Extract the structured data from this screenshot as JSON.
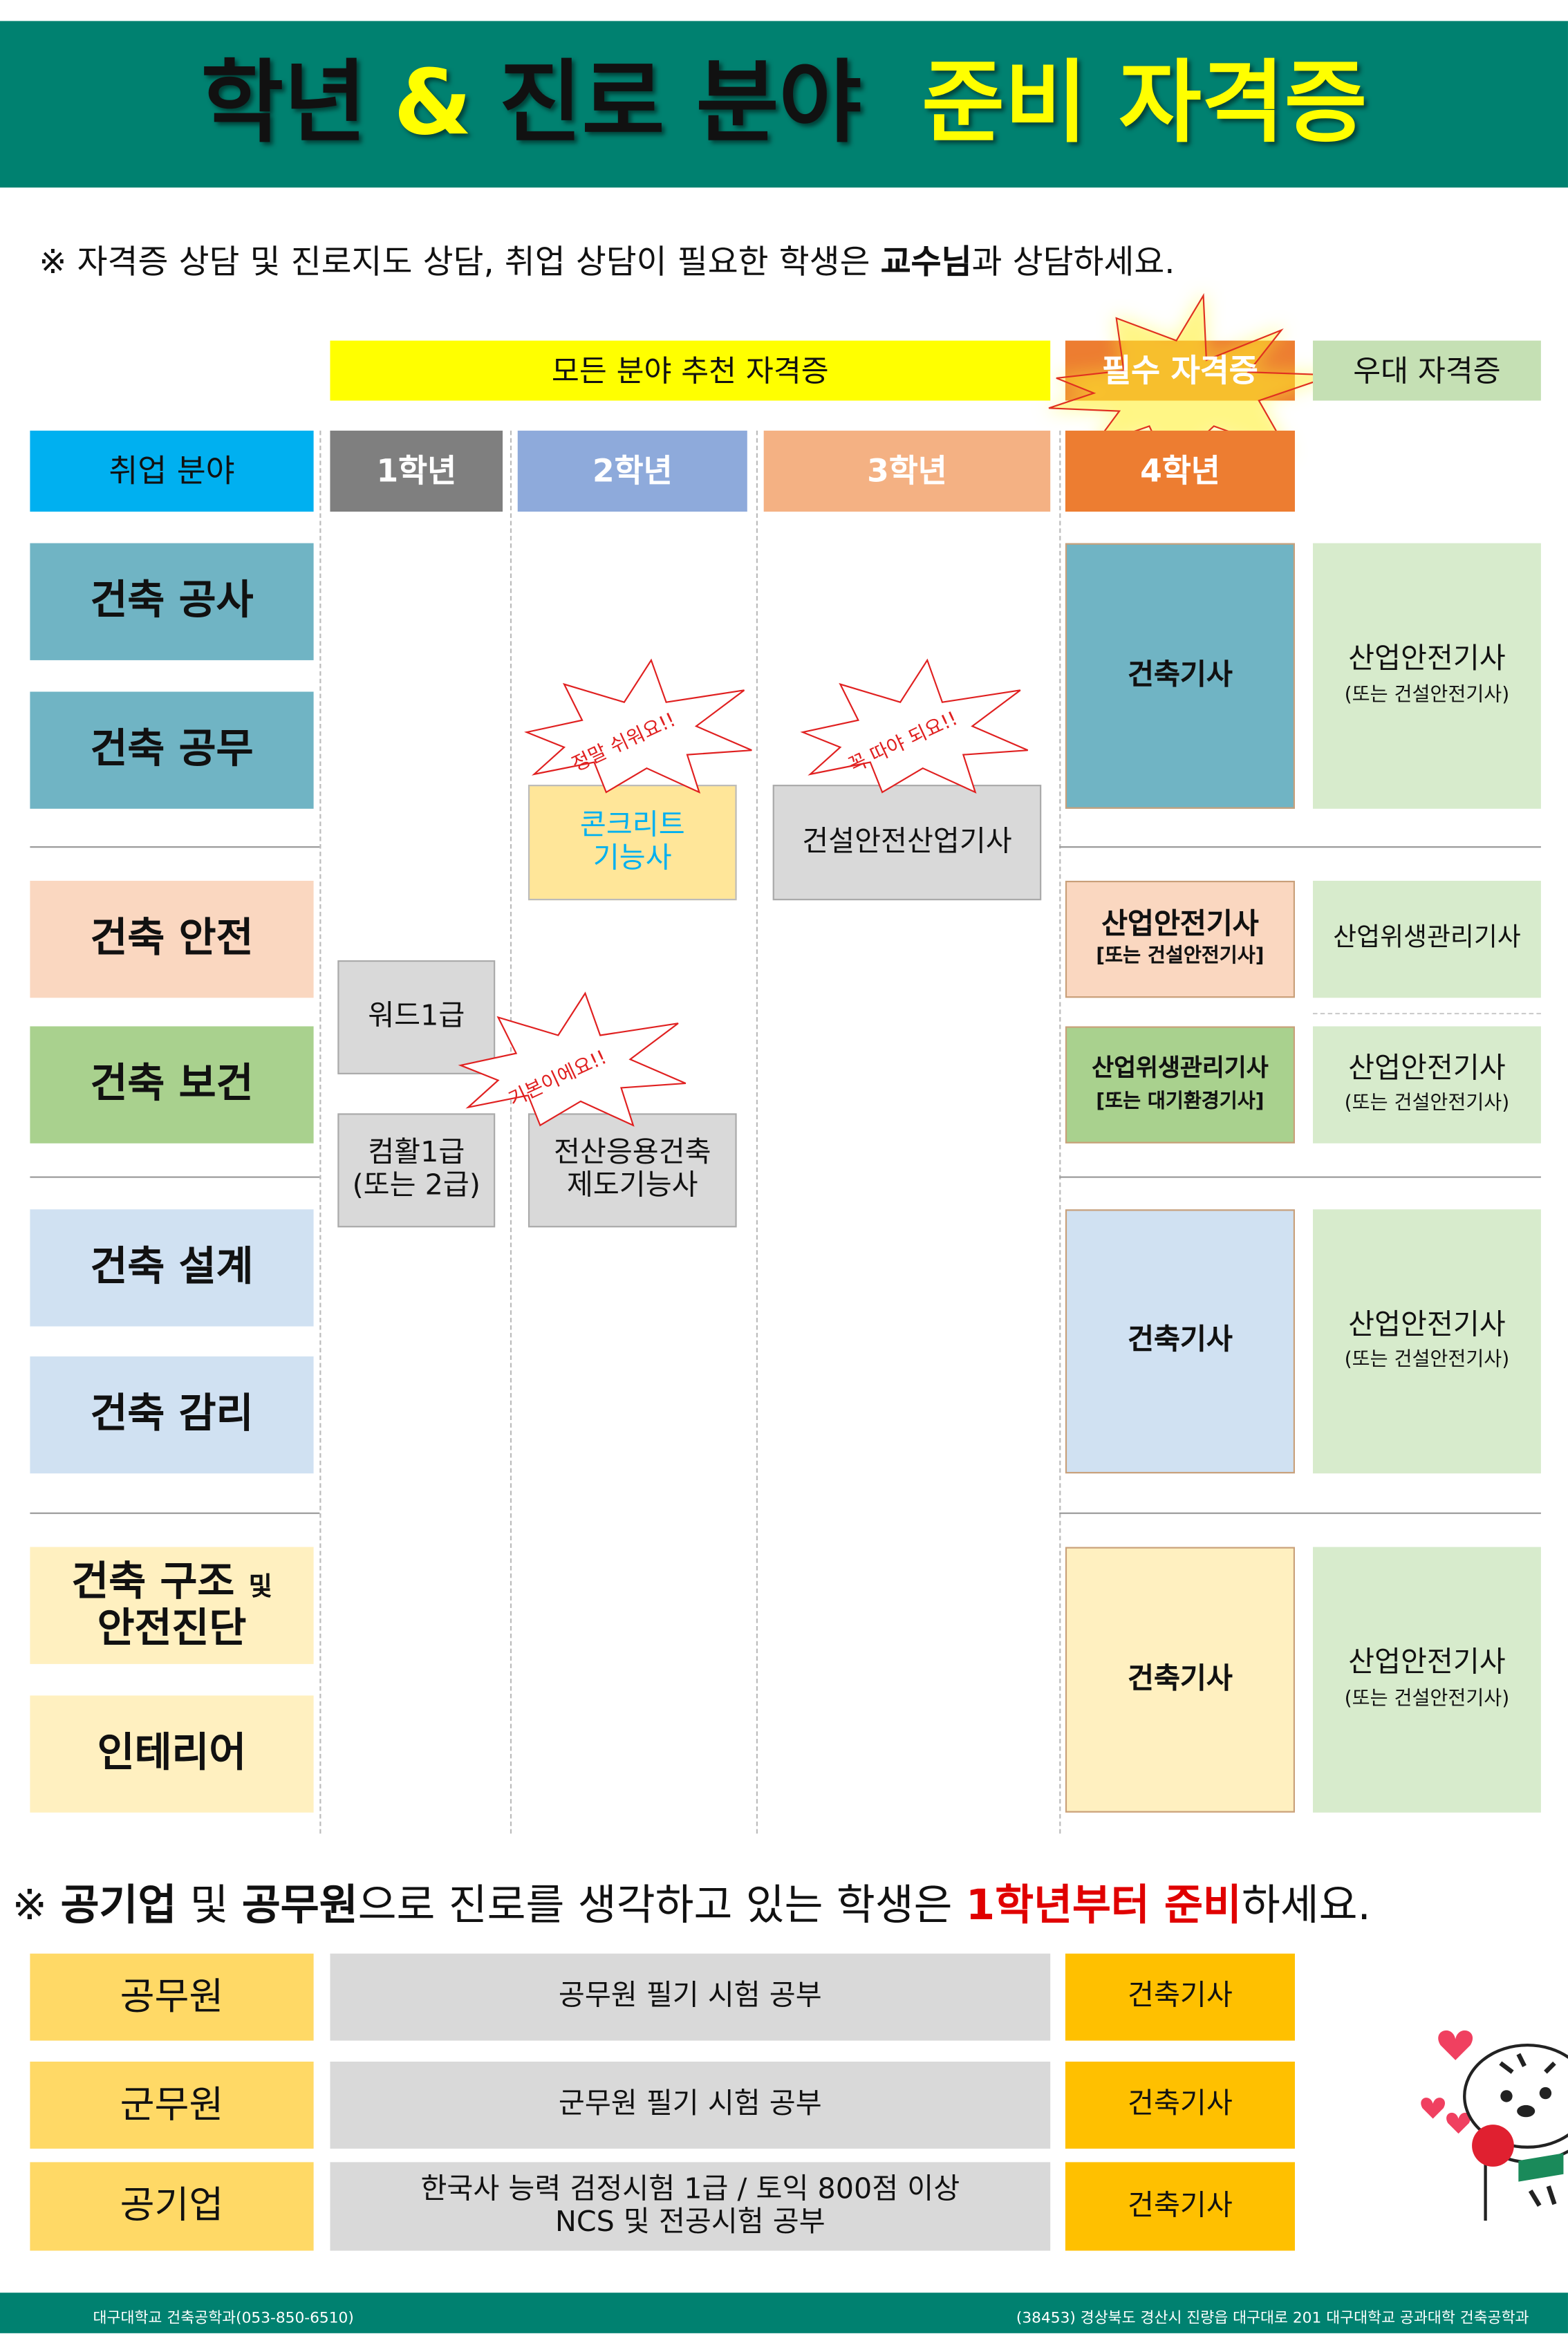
{
  "header": {
    "title_part1": "학년",
    "title_amp": "&",
    "title_part2": "진로 분야",
    "title_part3": "준비 자격증"
  },
  "note1": {
    "prefix": "※ 자격증 상담 및 진로지도 상담, 취업 상담이 필요한 학생은 ",
    "bold": "교수님",
    "suffix": "과 상담하세요."
  },
  "top_labels": {
    "recommended": "모든 분야 추천 자격증",
    "required": "필수 자격증",
    "preferred": "우대 자격증"
  },
  "columns": {
    "field": "취업 분야",
    "y1": "1학년",
    "y2": "2학년",
    "y3": "3학년",
    "y4": "4학년"
  },
  "fields": [
    "건축 공사",
    "건축 공무",
    "건축 안전",
    "건축 보건",
    "건축 설계",
    "건축 감리",
    "건축 구조",
    "및",
    "안전진단",
    "인테리어"
  ],
  "required": [
    {
      "main": "건축기사"
    },
    {
      "main": "산업안전기사",
      "sub": "[또는 건설안전기사]"
    },
    {
      "main": "산업위생관리기사",
      "sub": "[또는 대기환경기사]"
    },
    {
      "main": "건축기사"
    },
    {
      "main": "건축기사"
    }
  ],
  "preferred": [
    {
      "main": "산업안전기사",
      "sub": "(또는 건설안전기사)"
    },
    {
      "main": "산업위생관리기사"
    },
    {
      "main": "산업안전기사",
      "sub": "(또는 건설안전기사)"
    },
    {
      "main": "산업안전기사",
      "sub": "(또는 건설안전기사)"
    },
    {
      "main": "산업안전기사",
      "sub": "(또는 건설안전기사)"
    }
  ],
  "recommended": {
    "concrete": [
      "콘크리트",
      "기능사"
    ],
    "construction_safety": "건설안전산업기사",
    "word": "워드1급",
    "computer": [
      "컴활1급",
      "(또는 2급)"
    ],
    "cad": [
      "전산응용건축",
      "제도기능사"
    ]
  },
  "bursts": {
    "easy": "정말 쉬워요!!",
    "must": "꼭 따야 되요!!",
    "basic": "기본이에요!!"
  },
  "note2": {
    "prefix": "※ ",
    "b1": "공기업",
    "t1": " 및 ",
    "b2": "공무원",
    "t2": "으로 진로를 생각하고 있는 학생은 ",
    "red": "1학년부터 준비",
    "suffix": "하세요."
  },
  "public": [
    {
      "field": "공무원",
      "study": [
        "공무원 필기 시험 공부"
      ],
      "cert": "건축기사"
    },
    {
      "field": "군무원",
      "study": [
        "군무원 필기 시험 공부"
      ],
      "cert": "건축기사"
    },
    {
      "field": "공기업",
      "study": [
        "한국사 능력 검정시험 1급 / 토익 800점 이상",
        "NCS 및 전공시험 공부"
      ],
      "cert": "건축기사"
    }
  ],
  "footer": {
    "left": "대구대학교 건축공학과(053-850-6510)",
    "right": "(38453) 경상북도 경산시 진량읍 대구대로 201 대구대학교 공과대학 건축공학과"
  },
  "colors": {
    "brand_green": "#008170",
    "title_yellow": "#ffff00",
    "accent_red": "#e00000"
  },
  "icons": {
    "mascot": "tiger-mascot-with-hearts"
  }
}
